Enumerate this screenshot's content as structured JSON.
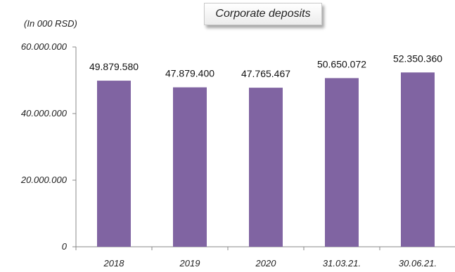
{
  "chart_data": {
    "type": "bar",
    "title": "Corporate deposits",
    "unit_label": "(In 000 RSD)",
    "categories": [
      "2018",
      "2019",
      "2020",
      "31.03.21.",
      "30.06.21."
    ],
    "values": [
      49879580,
      47879400,
      47765467,
      50650072,
      52350360
    ],
    "value_labels": [
      "49.879.580",
      "47.879.400",
      "47.765.467",
      "50.650.072",
      "52.350.360"
    ],
    "ylim": [
      0,
      60000000
    ],
    "yticks": [
      0,
      20000000,
      40000000,
      60000000
    ],
    "ytick_labels": [
      "0",
      "20.000.000",
      "40.000.000",
      "60.000.000"
    ],
    "grid": false,
    "legend": "none",
    "bar_color": "#8064a2"
  }
}
